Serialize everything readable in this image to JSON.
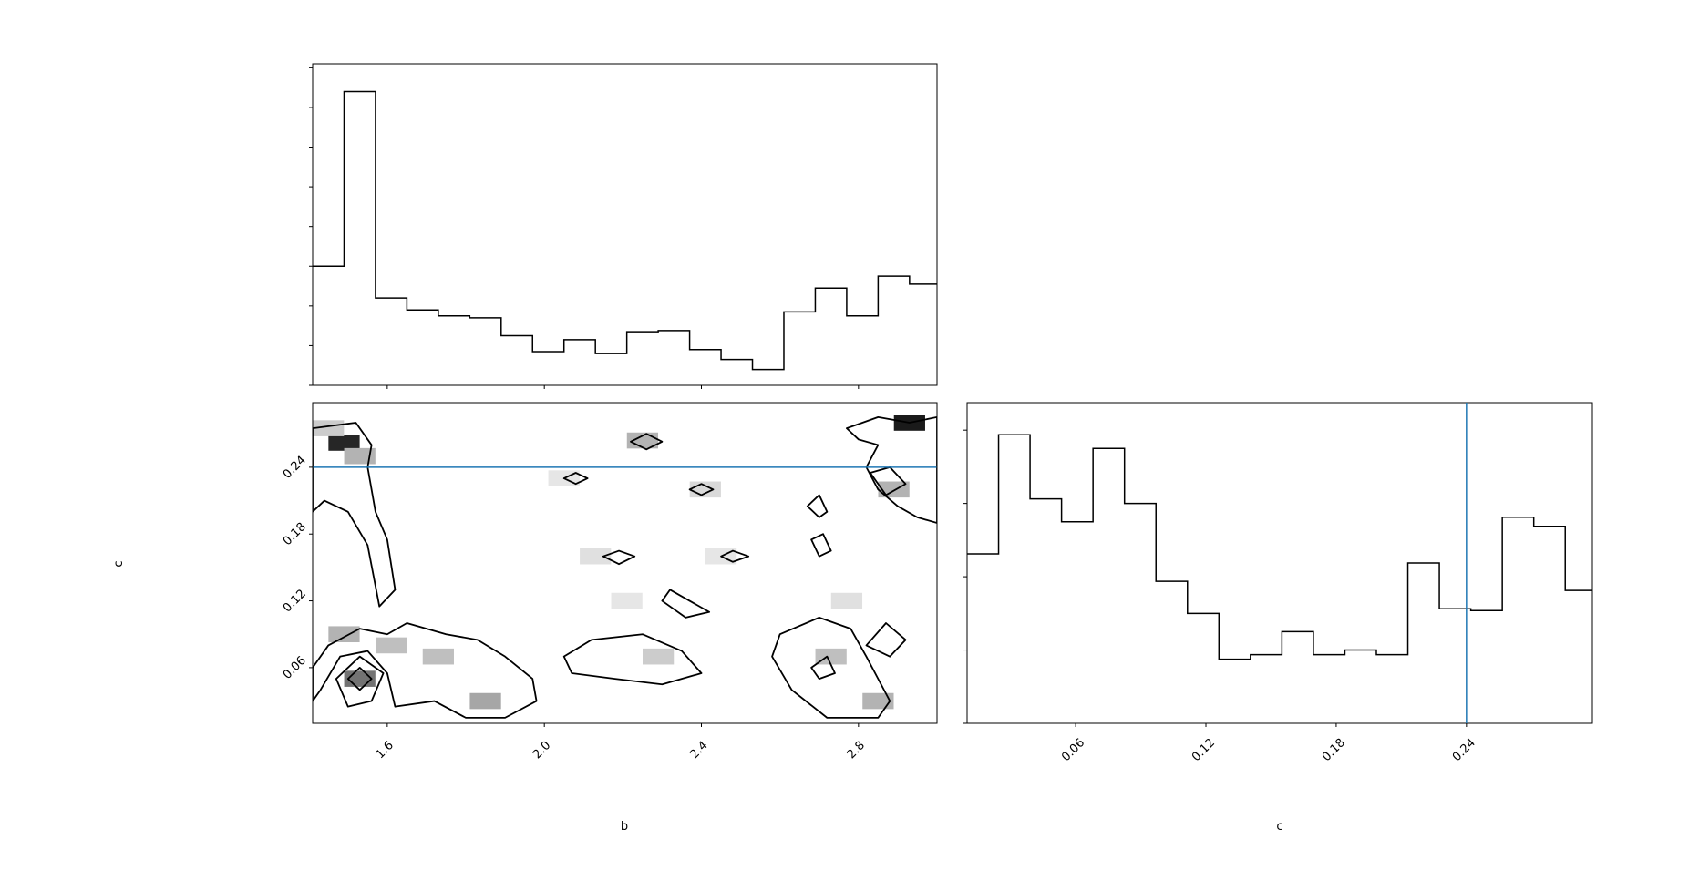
{
  "chart_data": [
    {
      "type": "histogram",
      "panel": "b marginal",
      "title": "",
      "xlabel": "",
      "ylabel": "",
      "xlim": [
        1.41,
        3.0
      ],
      "bin_edges": [
        1.41,
        1.49,
        1.57,
        1.65,
        1.73,
        1.81,
        1.89,
        1.97,
        2.05,
        2.13,
        2.21,
        2.29,
        2.37,
        2.45,
        2.53,
        2.61,
        2.69,
        2.77,
        2.85,
        2.93,
        3.0
      ],
      "counts": [
        30,
        74,
        22,
        19,
        17.5,
        17,
        12.5,
        8.5,
        11.5,
        8,
        13.5,
        13.8,
        9,
        6.5,
        4,
        18.5,
        24.5,
        17.5,
        27.5,
        25.5
      ],
      "ylim": [
        0,
        81
      ],
      "ytick_values": [
        0,
        10,
        20,
        30,
        40,
        50,
        60,
        70,
        80
      ],
      "xtick_values": [
        1.6,
        2.0,
        2.4,
        2.8
      ]
    },
    {
      "type": "heatmap",
      "panel": "b vs c 2D density with contours",
      "xlabel": "b",
      "ylabel": "c",
      "xlim": [
        1.41,
        3.0
      ],
      "ylim": [
        0.01,
        0.298
      ],
      "xtick_labels": [
        "1.6",
        "2.0",
        "2.4",
        "2.8"
      ],
      "xtick_values": [
        1.6,
        2.0,
        2.4,
        2.8
      ],
      "ytick_labels": [
        "0.06",
        "0.12",
        "0.18",
        "0.24"
      ],
      "ytick_values": [
        0.06,
        0.12,
        0.18,
        0.24
      ],
      "truth_line": {
        "axis": "c",
        "value": 0.24,
        "color": "#1f77b4"
      },
      "density_cells": [
        [
          1.49,
          0.262,
          0.85
        ],
        [
          1.53,
          0.25,
          0.3
        ],
        [
          1.45,
          0.275,
          0.2
        ],
        [
          1.53,
          0.05,
          0.55
        ],
        [
          1.49,
          0.09,
          0.3
        ],
        [
          1.61,
          0.08,
          0.25
        ],
        [
          1.73,
          0.07,
          0.25
        ],
        [
          1.85,
          0.03,
          0.35
        ],
        [
          2.93,
          0.28,
          0.9
        ],
        [
          2.89,
          0.22,
          0.3
        ],
        [
          2.85,
          0.03,
          0.3
        ],
        [
          2.73,
          0.07,
          0.25
        ],
        [
          2.29,
          0.07,
          0.2
        ],
        [
          2.21,
          0.12,
          0.1
        ],
        [
          2.13,
          0.16,
          0.12
        ],
        [
          2.45,
          0.16,
          0.1
        ],
        [
          2.05,
          0.23,
          0.1
        ],
        [
          2.25,
          0.264,
          0.3
        ],
        [
          2.41,
          0.22,
          0.15
        ],
        [
          2.77,
          0.12,
          0.12
        ]
      ],
      "contours": [
        [
          [
            1.41,
            0.275
          ],
          [
            1.52,
            0.28
          ],
          [
            1.56,
            0.26
          ],
          [
            1.55,
            0.24
          ],
          [
            1.57,
            0.2
          ],
          [
            1.6,
            0.175
          ],
          [
            1.62,
            0.13
          ],
          [
            1.58,
            0.115
          ],
          [
            1.55,
            0.17
          ],
          [
            1.5,
            0.2
          ],
          [
            1.44,
            0.21
          ],
          [
            1.41,
            0.2
          ]
        ],
        [
          [
            1.41,
            0.06
          ],
          [
            1.45,
            0.08
          ],
          [
            1.53,
            0.095
          ],
          [
            1.6,
            0.09
          ],
          [
            1.65,
            0.1
          ],
          [
            1.75,
            0.09
          ],
          [
            1.83,
            0.085
          ],
          [
            1.9,
            0.07
          ],
          [
            1.97,
            0.05
          ],
          [
            1.98,
            0.03
          ],
          [
            1.9,
            0.015
          ],
          [
            1.8,
            0.015
          ],
          [
            1.72,
            0.03
          ],
          [
            1.62,
            0.025
          ],
          [
            1.6,
            0.055
          ],
          [
            1.55,
            0.075
          ],
          [
            1.48,
            0.07
          ],
          [
            1.43,
            0.04
          ],
          [
            1.41,
            0.03
          ]
        ],
        [
          [
            1.47,
            0.05
          ],
          [
            1.53,
            0.07
          ],
          [
            1.59,
            0.055
          ],
          [
            1.56,
            0.03
          ],
          [
            1.5,
            0.025
          ]
        ],
        [
          [
            1.5,
            0.05
          ],
          [
            1.53,
            0.04
          ],
          [
            1.56,
            0.05
          ],
          [
            1.53,
            0.06
          ]
        ],
        [
          [
            2.05,
            0.07
          ],
          [
            2.12,
            0.085
          ],
          [
            2.25,
            0.09
          ],
          [
            2.35,
            0.075
          ],
          [
            2.4,
            0.055
          ],
          [
            2.3,
            0.045
          ],
          [
            2.18,
            0.05
          ],
          [
            2.07,
            0.055
          ]
        ],
        [
          [
            2.32,
            0.13
          ],
          [
            2.37,
            0.12
          ],
          [
            2.42,
            0.11
          ],
          [
            2.36,
            0.105
          ],
          [
            2.3,
            0.12
          ]
        ],
        [
          [
            2.6,
            0.09
          ],
          [
            2.7,
            0.105
          ],
          [
            2.78,
            0.095
          ],
          [
            2.82,
            0.07
          ],
          [
            2.85,
            0.05
          ],
          [
            2.88,
            0.03
          ],
          [
            2.85,
            0.015
          ],
          [
            2.72,
            0.015
          ],
          [
            2.63,
            0.04
          ],
          [
            2.58,
            0.07
          ]
        ],
        [
          [
            2.82,
            0.08
          ],
          [
            2.87,
            0.1
          ],
          [
            2.92,
            0.085
          ],
          [
            2.88,
            0.07
          ]
        ],
        [
          [
            2.68,
            0.06
          ],
          [
            2.72,
            0.07
          ],
          [
            2.74,
            0.055
          ],
          [
            2.7,
            0.05
          ]
        ],
        [
          [
            2.15,
            0.16
          ],
          [
            2.19,
            0.165
          ],
          [
            2.23,
            0.16
          ],
          [
            2.19,
            0.153
          ]
        ],
        [
          [
            2.45,
            0.16
          ],
          [
            2.48,
            0.165
          ],
          [
            2.52,
            0.16
          ],
          [
            2.48,
            0.155
          ]
        ],
        [
          [
            2.22,
            0.263
          ],
          [
            2.26,
            0.27
          ],
          [
            2.3,
            0.263
          ],
          [
            2.26,
            0.256
          ]
        ],
        [
          [
            2.05,
            0.23
          ],
          [
            2.08,
            0.235
          ],
          [
            2.11,
            0.23
          ],
          [
            2.08,
            0.225
          ]
        ],
        [
          [
            2.37,
            0.22
          ],
          [
            2.4,
            0.225
          ],
          [
            2.43,
            0.22
          ],
          [
            2.4,
            0.215
          ]
        ],
        [
          [
            2.67,
            0.205
          ],
          [
            2.7,
            0.215
          ],
          [
            2.72,
            0.2
          ],
          [
            2.7,
            0.195
          ]
        ],
        [
          [
            2.68,
            0.175
          ],
          [
            2.71,
            0.18
          ],
          [
            2.73,
            0.165
          ],
          [
            2.7,
            0.16
          ]
        ],
        [
          [
            2.77,
            0.275
          ],
          [
            2.85,
            0.285
          ],
          [
            2.93,
            0.28
          ],
          [
            3.0,
            0.285
          ],
          [
            3.0,
            0.19
          ],
          [
            2.95,
            0.195
          ],
          [
            2.9,
            0.205
          ],
          [
            2.85,
            0.22
          ],
          [
            2.82,
            0.24
          ],
          [
            2.85,
            0.26
          ],
          [
            2.8,
            0.265
          ]
        ],
        [
          [
            2.83,
            0.235
          ],
          [
            2.88,
            0.24
          ],
          [
            2.92,
            0.225
          ],
          [
            2.87,
            0.215
          ]
        ]
      ]
    },
    {
      "type": "histogram",
      "panel": "c marginal",
      "xlabel": "c",
      "ylabel": "",
      "xlim": [
        0.01,
        0.298
      ],
      "bin_edges": [
        0.01,
        0.0245,
        0.039,
        0.0535,
        0.068,
        0.0825,
        0.097,
        0.1115,
        0.126,
        0.1405,
        0.155,
        0.1695,
        0.184,
        0.1985,
        0.213,
        0.2275,
        0.242,
        0.2565,
        0.271,
        0.2855,
        0.298
      ],
      "counts": [
        18.5,
        31.5,
        24.5,
        22,
        30,
        24,
        15.5,
        12,
        7,
        7.5,
        10,
        7.5,
        8,
        7.5,
        17.5,
        12.5,
        12.3,
        22.5,
        21.5,
        14.5
      ],
      "ylim": [
        0,
        35
      ],
      "ytick_values": [
        0,
        8,
        16,
        24,
        32
      ],
      "xtick_labels": [
        "0.06",
        "0.12",
        "0.18",
        "0.24"
      ],
      "xtick_values": [
        0.06,
        0.12,
        0.18,
        0.24
      ],
      "truth_line": {
        "axis": "c",
        "value": 0.24,
        "color": "#1f77b4"
      }
    }
  ]
}
